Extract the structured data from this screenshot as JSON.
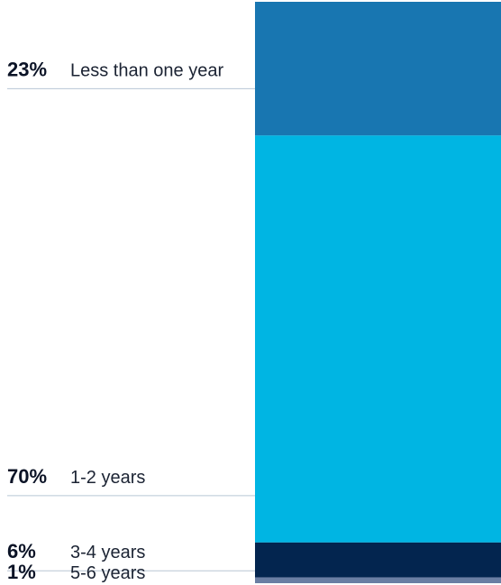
{
  "chart_data": {
    "type": "bar",
    "stacked": true,
    "orientation": "vertical",
    "categories": [
      "Less than one year",
      "1-2 years",
      "3-4 years",
      "5-6 years"
    ],
    "values": [
      23,
      70,
      6,
      1
    ],
    "value_labels": [
      "23%",
      "70%",
      "6%",
      "1%"
    ],
    "unit": "%",
    "colors": [
      "#1876b1",
      "#00b5e3",
      "#03254f",
      "#6a7ea3"
    ],
    "title": "",
    "xlabel": "",
    "ylabel": "",
    "grid": false,
    "legend": "left-aligned labels"
  }
}
